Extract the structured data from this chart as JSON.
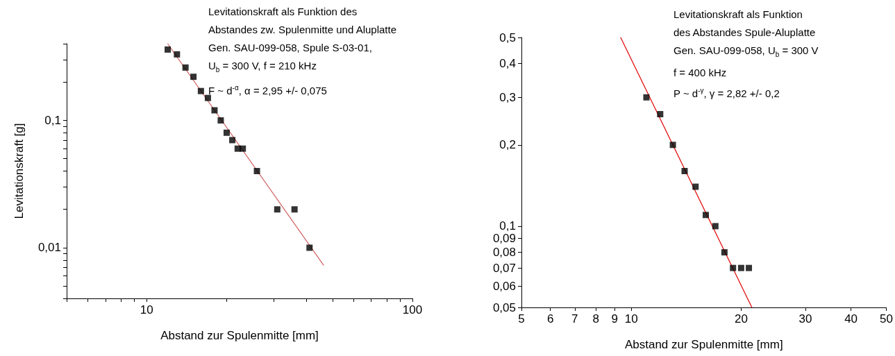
{
  "chart_data": [
    {
      "type": "scatter",
      "xlabel": "Abstand zur Spulenmitte [mm]",
      "ylabel": "Levitationskraft [g]",
      "log": "xy",
      "xlim": [
        5,
        100
      ],
      "ylim": [
        0.004,
        0.4
      ],
      "xticks": [
        {
          "value": 5,
          "label": null
        },
        {
          "value": 6,
          "label": null
        },
        {
          "value": 7,
          "label": null
        },
        {
          "value": 8,
          "label": null
        },
        {
          "value": 9,
          "label": null
        },
        10,
        {
          "value": 20,
          "label": null
        },
        {
          "value": 30,
          "label": null
        },
        {
          "value": 40,
          "label": null
        },
        {
          "value": 50,
          "label": null
        },
        {
          "value": 60,
          "label": null
        },
        {
          "value": 70,
          "label": null
        },
        {
          "value": 80,
          "label": null
        },
        {
          "value": 90,
          "label": null
        },
        100
      ],
      "yticks": [
        {
          "value": 0.004,
          "label": null
        },
        {
          "value": 0.005,
          "label": null
        },
        {
          "value": 0.006,
          "label": null
        },
        {
          "value": 0.007,
          "label": null
        },
        {
          "value": 0.008,
          "label": null
        },
        {
          "value": 0.009,
          "label": null
        },
        {
          "value": 0.01,
          "label": "0,01"
        },
        {
          "value": 0.02,
          "label": null
        },
        {
          "value": 0.03,
          "label": null
        },
        {
          "value": 0.04,
          "label": null
        },
        {
          "value": 0.05,
          "label": null
        },
        {
          "value": 0.06,
          "label": null
        },
        {
          "value": 0.07,
          "label": null
        },
        {
          "value": 0.08,
          "label": null
        },
        {
          "value": 0.09,
          "label": null
        },
        {
          "value": 0.1,
          "label": "0,1"
        },
        {
          "value": 0.2,
          "label": null
        },
        {
          "value": 0.3,
          "label": null
        },
        {
          "value": 0.4,
          "label": null
        }
      ],
      "series": [
        {
          "marker": "square",
          "color": "#000000",
          "x": [
            12,
            13,
            14,
            15,
            16,
            17,
            18,
            19,
            20,
            21,
            22,
            23,
            26,
            31,
            36,
            41
          ],
          "values": [
            0.36,
            0.33,
            0.26,
            0.22,
            0.17,
            0.15,
            0.12,
            0.1,
            0.08,
            0.07,
            0.06,
            0.06,
            0.04,
            0.02,
            0.02,
            0.01
          ]
        },
        {
          "type": "line",
          "marker": "none",
          "color": "#d06060",
          "x": [
            12,
            46.3
          ],
          "values": [
            0.4,
            0.0073
          ]
        }
      ],
      "annotations": [
        "Levitationskraft als Funktion des",
        "Abstandes zw. Spulenmitte und Aluplatte",
        "Gen. SAU-099-058, Spule S-03-01,",
        "U$_{b}$ = 300 V, f = 210 kHz",
        "F ~ d$^{-α}$, α = 2,95 +/- 0,075"
      ]
    },
    {
      "type": "scatter",
      "xlabel": "Abstand zur Spulenmitte [mm]",
      "log": "xy",
      "xlim": [
        5,
        50
      ],
      "ylim": [
        0.05,
        0.5
      ],
      "xticks": [
        5,
        6,
        7,
        8,
        9,
        10,
        20,
        30,
        40,
        50
      ],
      "yticks": [
        {
          "value": 0.05,
          "label": "0,05"
        },
        {
          "value": 0.06,
          "label": "0,06"
        },
        {
          "value": 0.07,
          "label": "0,07"
        },
        {
          "value": 0.08,
          "label": "0,08"
        },
        {
          "value": 0.09,
          "label": "0,09"
        },
        {
          "value": 0.1,
          "label": "0,1"
        },
        {
          "value": 0.2,
          "label": "0,2"
        },
        {
          "value": 0.3,
          "label": "0,3"
        },
        {
          "value": 0.4,
          "label": "0,4"
        },
        {
          "value": 0.5,
          "label": "0,5"
        }
      ],
      "series": [
        {
          "marker": "square",
          "color": "#000000",
          "x": [
            11,
            12,
            13,
            14,
            15,
            16,
            17,
            18,
            19,
            20,
            21
          ],
          "values": [
            0.3,
            0.26,
            0.2,
            0.16,
            0.14,
            0.11,
            0.1,
            0.08,
            0.07,
            0.07,
            0.07
          ]
        },
        {
          "type": "line",
          "marker": "none",
          "color": "#e00000",
          "x": [
            9.35,
            21.4
          ],
          "values": [
            0.5,
            0.05
          ]
        }
      ],
      "annotations": [
        "Levitationskraft als Funktion",
        "des Abstandes Spule-Aluplatte",
        "Gen. SAU-099-058, U$_{b}$ = 300 V",
        "f = 400 kHz",
        "P ~ d$^{-γ}$, γ = 2,82 +/- 0,2"
      ]
    }
  ]
}
